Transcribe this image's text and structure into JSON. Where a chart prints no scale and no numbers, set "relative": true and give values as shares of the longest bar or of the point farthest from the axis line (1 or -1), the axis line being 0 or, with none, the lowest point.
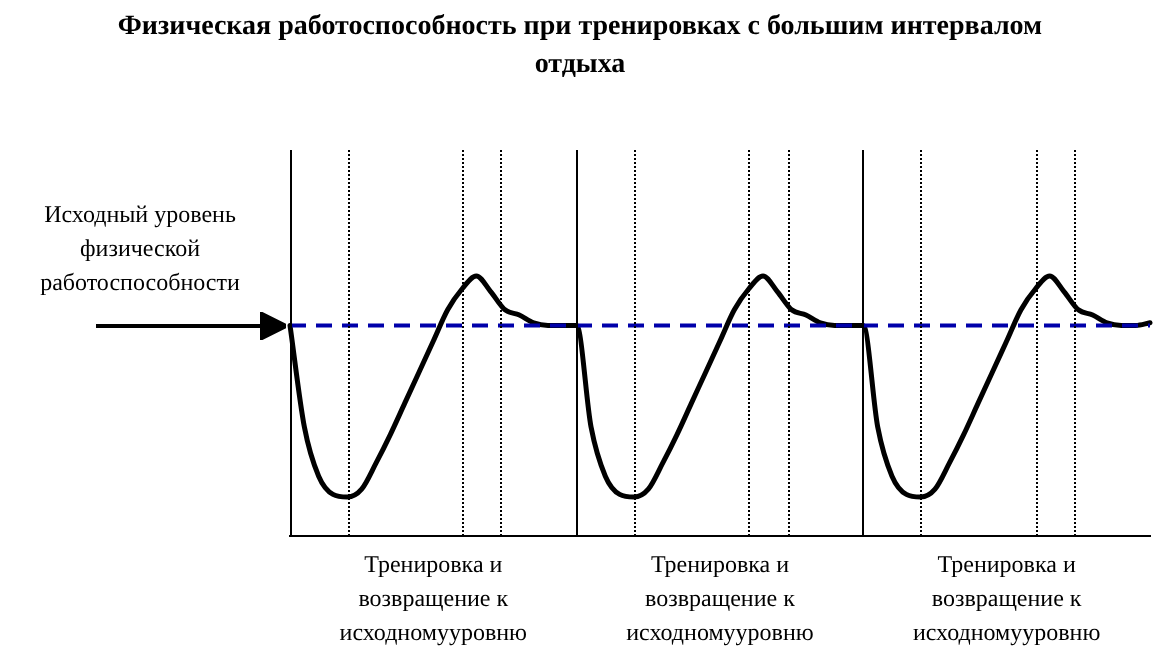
{
  "chart_data": {
    "type": "line",
    "title": "Физическая работоспособность при тренировках с большим интервалом отдыха",
    "relative": true,
    "categories": [
      null,
      null,
      null,
      null,
      null,
      null,
      null,
      null,
      null,
      null,
      null,
      null,
      null,
      null,
      null,
      null,
      null,
      null,
      null,
      null,
      null,
      null,
      null,
      null,
      null,
      null,
      null,
      null,
      null,
      null,
      null,
      null,
      null,
      null,
      null,
      null,
      null,
      null,
      null,
      null,
      null,
      null,
      null,
      null,
      null,
      null,
      null,
      null,
      null,
      null,
      null,
      null,
      null,
      null,
      null,
      null,
      null,
      null,
      null,
      null,
      null
    ],
    "series": [
      {
        "color": "#000000",
        "values": [
          0.81,
          0.42,
          0.23,
          0.16,
          0.15,
          0.18,
          0.28,
          0.39,
          0.51,
          0.63,
          0.75,
          0.87,
          0.95,
          1.0,
          0.94,
          0.87,
          0.85,
          0.82,
          0.81,
          0.81,
          0.81,
          0.42,
          0.23,
          0.16,
          0.15,
          0.18,
          0.28,
          0.39,
          0.51,
          0.63,
          0.75,
          0.87,
          0.95,
          1.0,
          0.94,
          0.87,
          0.85,
          0.82,
          0.81,
          0.81,
          0.81,
          0.42,
          0.23,
          0.16,
          0.15,
          0.18,
          0.28,
          0.39,
          0.51,
          0.63,
          0.75,
          0.87,
          0.95,
          1.0,
          0.94,
          0.87,
          0.85,
          0.82,
          0.81,
          0.81,
          0.82
        ]
      }
    ],
    "ref_lines": [
      {
        "axis": "y",
        "value": 0.81,
        "color": "#0000aa",
        "line_style": "dashed"
      }
    ],
    "annotations": [
      "Исходный уровень физической работоспособности",
      "Тренировка и возвращение к исходномууровню",
      "Тренировка и возвращение к исходномууровню",
      "Тренировка и возвращение к исходномууровню"
    ],
    "marker": "none",
    "line_style": "solid",
    "grid": "x",
    "legend": false
  }
}
